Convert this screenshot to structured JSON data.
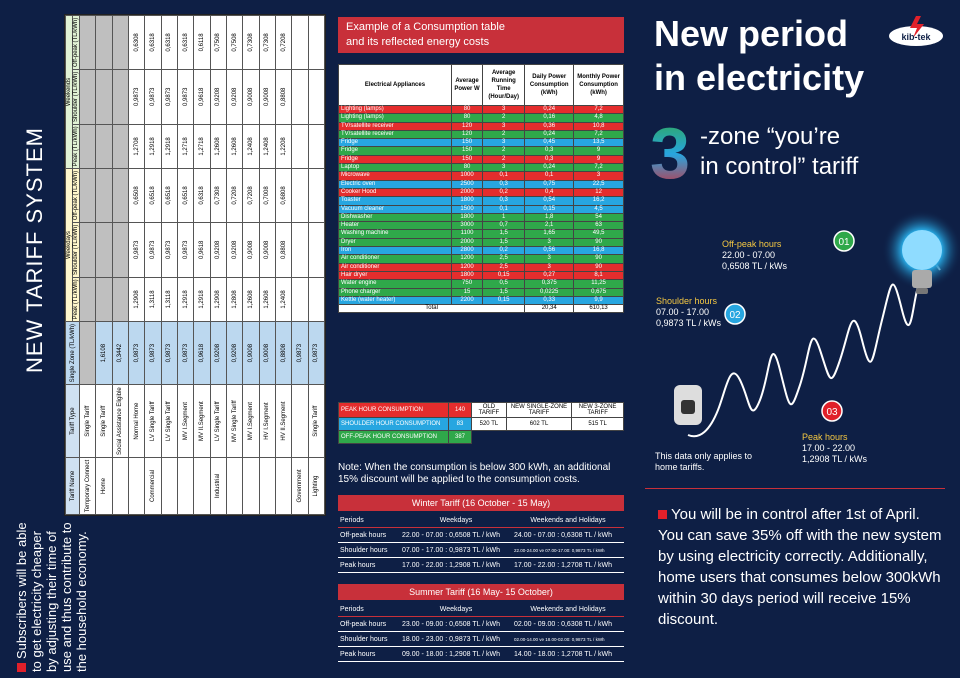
{
  "left": {
    "title": "NEW TARIFF SYSTEM",
    "note": "Subscribers will be able to get electricity cheaper by adjusting their time of use and thus contribute to the household economy.",
    "table": {
      "groups": {
        "weekdays": "Weekdays",
        "weekends": "Weekends"
      },
      "headers": [
        "Tariff Name",
        "Tariff Type",
        "Single Zone (TL/kWh)",
        "Peak (TL/kWh)",
        "Shoulder (TL/kWh)",
        "Off-peak (TL/kWh)",
        "Peak (TL/kWh)",
        "Shoulder (TL/kWh)",
        "Off-peak (TL/kWh)"
      ],
      "rows": [
        [
          "Temporary Connect",
          "Single Tariff",
          "",
          "",
          "",
          "",
          "",
          "",
          ""
        ],
        [
          "Home",
          "Single Tariff",
          "1,6108",
          "",
          "",
          "",
          "",
          "",
          ""
        ],
        [
          "",
          "Social Assistance Eligible",
          "0,3442",
          "",
          "",
          "",
          "",
          "",
          ""
        ],
        [
          "",
          "Normal Home",
          "0,9873",
          "1,2908",
          "0,9873",
          "0,6508",
          "1,2708",
          "0,9873",
          "0,6308"
        ],
        [
          "Commercial",
          "LV Single Tariff",
          "0,9873",
          "1,3118",
          "0,9873",
          "0,6518",
          "1,2918",
          "0,9873",
          "0,6318"
        ],
        [
          "",
          "LV Single Tariff",
          "0,9873",
          "1,3118",
          "0,9873",
          "0,6518",
          "1,2918",
          "0,9873",
          "0,6318"
        ],
        [
          "",
          "MV I.Segment",
          "0,9873",
          "1,2918",
          "0,9873",
          "0,6518",
          "1,2718",
          "0,9873",
          "0,6318"
        ],
        [
          "",
          "MV II.Segment",
          "0,9618",
          "1,2918",
          "0,9618",
          "0,6318",
          "1,2718",
          "0,9618",
          "0,6118"
        ],
        [
          "Industrial",
          "LV Single Tariff",
          "0,9208",
          "1,2908",
          "0,9208",
          "0,7308",
          "1,2608",
          "0,9208",
          "0,7508"
        ],
        [
          "",
          "MV Single Tariff",
          "0,9208",
          "1,2808",
          "0,9208",
          "0,7208",
          "1,2608",
          "0,9208",
          "0,7508"
        ],
        [
          "",
          "MV I.Segment",
          "0,9008",
          "1,2608",
          "0,9008",
          "0,7208",
          "1,2408",
          "0,9008",
          "0,7308"
        ],
        [
          "",
          "HV I.Segment",
          "0,9008",
          "1,2608",
          "0,9008",
          "0,7008",
          "1,2408",
          "0,9008",
          "0,7308"
        ],
        [
          "",
          "HV II.Segment",
          "0,8808",
          "1,2408",
          "0,8808",
          "0,6808",
          "1,2208",
          "0,8808",
          "0,7208"
        ],
        [
          "Government",
          "",
          "0,9873",
          "",
          "",
          "",
          "",
          "",
          ""
        ],
        [
          "Lighting",
          "Single Tariff",
          "0,9873",
          "",
          "",
          "",
          "",
          "",
          ""
        ]
      ]
    }
  },
  "middle": {
    "title_line1": "Example of a Consumption table",
    "title_line2": "and its reflected energy costs",
    "headers": [
      "Electrical Appliances",
      "Average Power W",
      "Average Running Time (Hour/Day)",
      "Daily Power Consumption (kWh)",
      "Monthly Power Consumption (kWh)"
    ],
    "rows": [
      {
        "c": "red",
        "v": [
          "Lighting (lamps)",
          "80",
          "3",
          "0,24",
          "7,2"
        ]
      },
      {
        "c": "green",
        "v": [
          "Lighting (lamps)",
          "80",
          "2",
          "0,16",
          "4,8"
        ]
      },
      {
        "c": "red",
        "v": [
          "TV/satellite receiver",
          "120",
          "3",
          "0,36",
          "10,8"
        ]
      },
      {
        "c": "green",
        "v": [
          "TV/satellite receiver",
          "120",
          "2",
          "0,24",
          "7,2"
        ]
      },
      {
        "c": "blue",
        "v": [
          "Fridge",
          "150",
          "3",
          "0,45",
          "13,5"
        ]
      },
      {
        "c": "green",
        "v": [
          "Fridge",
          "150",
          "2",
          "0,3",
          "9"
        ]
      },
      {
        "c": "red",
        "v": [
          "Fridge",
          "150",
          "2",
          "0,3",
          "9"
        ]
      },
      {
        "c": "green",
        "v": [
          "Laptop",
          "80",
          "3",
          "0,24",
          "7,2"
        ]
      },
      {
        "c": "red",
        "v": [
          "Microwave",
          "1000",
          "0,1",
          "0,1",
          "3"
        ]
      },
      {
        "c": "blue",
        "v": [
          "Electric oven",
          "2500",
          "0,3",
          "0,75",
          "22,5"
        ]
      },
      {
        "c": "red",
        "v": [
          "Cooker Hood",
          "2000",
          "0,2",
          "0,4",
          "12"
        ]
      },
      {
        "c": "blue",
        "v": [
          "Toaster",
          "1800",
          "0,3",
          "0,54",
          "16,2"
        ]
      },
      {
        "c": "blue",
        "v": [
          "Vacuum cleaner",
          "1500",
          "0,1",
          "0,15",
          "4,5"
        ]
      },
      {
        "c": "green",
        "v": [
          "Dishwasher",
          "1800",
          "1",
          "1,8",
          "54"
        ]
      },
      {
        "c": "green",
        "v": [
          "Heater",
          "3000",
          "0,7",
          "2,1",
          "63"
        ]
      },
      {
        "c": "green",
        "v": [
          "Washing machine",
          "1100",
          "1,5",
          "1,65",
          "49,5"
        ]
      },
      {
        "c": "green",
        "v": [
          "Dryer",
          "2000",
          "1,5",
          "3",
          "90"
        ]
      },
      {
        "c": "blue",
        "v": [
          "Iron",
          "2800",
          "0,2",
          "0,56",
          "16,8"
        ]
      },
      {
        "c": "green",
        "v": [
          "Air conditioner",
          "1200",
          "2,5",
          "3",
          "90"
        ]
      },
      {
        "c": "red",
        "v": [
          "Air conditioner",
          "1200",
          "2,5",
          "3",
          "90"
        ]
      },
      {
        "c": "red",
        "v": [
          "Hair dryer",
          "1800",
          "0,15",
          "0,27",
          "8,1"
        ]
      },
      {
        "c": "green",
        "v": [
          "Water engine",
          "750",
          "0,5",
          "0,375",
          "11,25"
        ]
      },
      {
        "c": "green",
        "v": [
          "Phone charger",
          "15",
          "1,5",
          "0,0225",
          "0,675"
        ]
      },
      {
        "c": "blue",
        "v": [
          "Kettle (water heater)",
          "2200",
          "0,15",
          "0,33",
          "9,9"
        ]
      }
    ],
    "total": {
      "label": "Total",
      "daily": "20,34",
      "monthly": "610,13"
    },
    "summary": {
      "peak_label": "PEAK HOUR CONSUMPTION",
      "peak_val": "140",
      "shoulder_label": "SHOULDER HOUR CONSUMPTION",
      "shoulder_val": "83",
      "offpeak_label": "OFF-PEAK HOUR CONSUMPTION",
      "offpeak_val": "387",
      "old": "OLD TARIFF",
      "old_val": "520 TL",
      "single": "NEW SINGLE-ZONE TARIFF",
      "single_val": "602 TL",
      "three": "NEW 3-ZONE TARIFF",
      "three_val": "515 TL"
    },
    "note": "Note: When the consumption is below 300 kWh, an additional 15% discount will be applied to the consumption costs.",
    "winter": {
      "title": "Winter Tariff (16 October - 15 May)",
      "h": [
        "Periods",
        "Weekdays",
        "Weekends and Holidays"
      ],
      "rows": [
        [
          "Off-peak hours",
          "22.00 - 07.00 : 0,6508 TL / kWh",
          "24.00 - 07.00 : 0,6308 TL / kWh"
        ],
        [
          "Shoulder hours",
          "07.00 - 17.00 : 0,9873 TL / kWh",
          "22.00-24.00 ve 07.00-17.00: 0,9873 TL / kWh"
        ],
        [
          "Peak hours",
          "17.00 - 22.00 : 1,2908 TL / kWh",
          "17.00 - 22.00 : 1,2708 TL / kWh"
        ]
      ]
    },
    "summer": {
      "title": "Summer Tariff (16 May- 15 October)",
      "h": [
        "Periods",
        "Weekdays",
        "Weekends and Holidays"
      ],
      "rows": [
        [
          "Off-peak hours",
          "23.00 - 09.00 : 0,6508 TL / kWh",
          "02.00 - 09.00 : 0,6308 TL / kWh"
        ],
        [
          "Shoulder hours",
          "18.00 - 23.00 : 0,9873 TL / kWh",
          "02.00-14.00 ve 18.00-02.00: 0,9873 TL / kWh"
        ],
        [
          "Peak hours",
          "09.00 - 18.00 : 1,2908 TL / kWh",
          "14.00 - 18.00 : 1,2708 TL / kWh"
        ]
      ]
    }
  },
  "right": {
    "title1": "New period",
    "title2": "in electricity",
    "logo": "kib-tek",
    "big3": "3",
    "subtitle1": "-zone “you’re",
    "subtitle2": "in control” tariff",
    "markers": [
      {
        "n": "01",
        "name": "Off-peak hours",
        "time": "22.00 - 07.00",
        "price": "0,6508 TL / kWs"
      },
      {
        "n": "02",
        "name": "Shoulder hours",
        "time": "07.00 - 17.00",
        "price": "0,9873 TL / kWs"
      },
      {
        "n": "03",
        "name": "Peak hours",
        "time": "17.00 - 22.00",
        "price": "1,2908 TL / kWs"
      }
    ],
    "home_note": "This data only applies to home tariffs.",
    "note": "You will be in control after 1st of April. You can save 35% off with the new system by using electricity correctly.  Additionally, home users that consumes below 300kWh within 30 days period will receive 15% discount.",
    "colors": {
      "red": "#e0202a",
      "green": "#2fa84a",
      "blue": "#27a6e0",
      "navy": "#0e1f45",
      "yellow": "#f5c842"
    }
  }
}
